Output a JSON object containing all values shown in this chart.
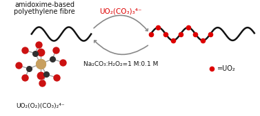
{
  "bg_color": "#ffffff",
  "fiber_color": "#111111",
  "dot_color": "#dd0000",
  "arrow_color": "#888888",
  "label_top": "UO₂(CO₃)₃⁴⁻",
  "label_bottom": "Na₂CO₃:H₂O₂=1 M:0.1 M",
  "label_left_line1": "amidoxime-based",
  "label_left_line2": "polyethylene fibre",
  "label_molecule": "UO₂(O₂)(CO₃)₂⁴⁻",
  "legend_text": "=UO₂",
  "label_top_color": "#dd0000",
  "label_bottom_color": "#111111",
  "fiber_lw": 1.8,
  "figsize": [
    3.77,
    1.69
  ],
  "dpi": 100
}
